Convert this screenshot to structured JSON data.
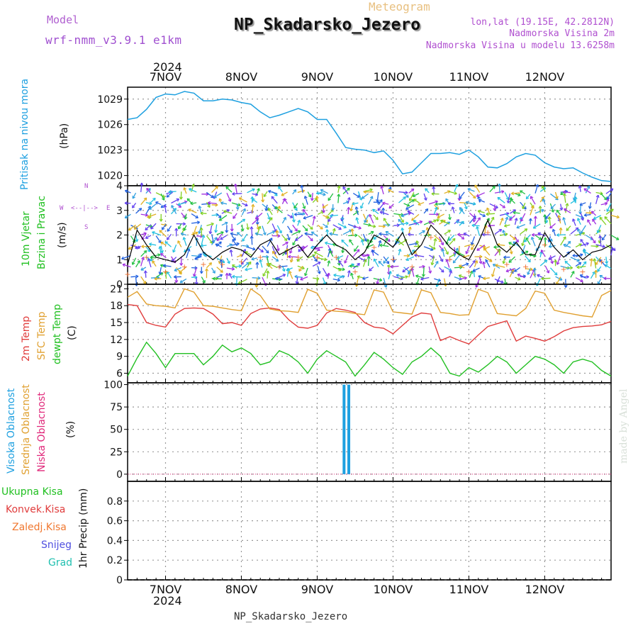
{
  "header": {
    "model_label": "Model",
    "model_name": "wrf-nmm_v3.9.1 e1km",
    "meteogram_label": "Meteogram",
    "station_title": "NP_Skadarsko_Jezero",
    "coords": "lon,lat (19.15E, 42.2812N)",
    "elevation": "Nadmorska Visina 2m",
    "model_elevation": "Nadmorska Visina u modelu 13.6258m",
    "footer_station": "NP_Skadarsko_Jezero",
    "credit": "made by Angel"
  },
  "axis_time": {
    "year": "2024",
    "days": [
      "7NOV",
      "8NOV",
      "9NOV",
      "10NOV",
      "11NOV",
      "12NOV"
    ]
  },
  "colors": {
    "pressure": "#1ea0e0",
    "wind_speed": "#000000",
    "temp2m": "#e03c3c",
    "sfc_temp": "#e0a030",
    "dewpoint": "#22c022",
    "cloud_high": "#1ea0e0",
    "cloud_mid": "#e0a030",
    "cloud_low": "#e0287a",
    "grid": "#999999"
  },
  "panel_labels": {
    "pressure": {
      "name": "Pritisak na nivou mora",
      "unit": "(hPa)"
    },
    "wind": {
      "line1": "10m Vjetar",
      "line2": "Brzina i Pravac",
      "unit": "(m/s)",
      "compass_n": "N",
      "compass_w": "W",
      "compass_e": "E",
      "compass_s": "S"
    },
    "temp": {
      "t2m": "2m Temp",
      "sfc": "SFC Temp",
      "dew": "dewpt Temp",
      "unit": "(C)"
    },
    "cloud": {
      "high": "Visoka Oblacnost",
      "mid": "Srednja Oblacnost",
      "low": "Niska Oblacnost",
      "unit": "(%)"
    },
    "precip": {
      "total": "Ukupna Kisa",
      "conv": "Konvek.Kisa",
      "frozen": "Zaledj.Kisa",
      "snow": "Snijeg",
      "grad": "Grad",
      "axis": "1hr Precip (mm)"
    }
  },
  "chart_data": [
    {
      "type": "line",
      "name": "pressure",
      "ylim": [
        1018.8,
        1030.4
      ],
      "yticks": [
        "1029",
        "1026",
        "1023",
        "1020"
      ],
      "yticks_values": [
        1029,
        1026,
        1023,
        1020
      ],
      "x_hours": [
        0,
        3,
        6,
        9,
        12,
        15,
        18,
        21,
        24,
        27,
        30,
        33,
        36,
        39,
        42,
        45,
        48,
        51,
        54,
        57,
        60,
        63,
        66,
        69,
        72,
        75,
        78,
        81,
        84,
        87,
        90,
        93,
        96,
        99,
        102,
        105,
        108,
        111,
        114,
        117,
        120,
        123,
        126,
        129,
        132,
        135,
        138,
        141,
        144,
        147,
        150,
        153
      ],
      "values": [
        1026.6,
        1026.8,
        1027.8,
        1029.2,
        1029.6,
        1029.5,
        1029.9,
        1029.7,
        1028.8,
        1028.8,
        1029.0,
        1028.9,
        1028.6,
        1028.4,
        1027.5,
        1026.8,
        1027.1,
        1027.5,
        1027.9,
        1027.5,
        1026.6,
        1026.6,
        1025.0,
        1023.3,
        1023.1,
        1023.0,
        1022.7,
        1022.9,
        1021.8,
        1020.2,
        1020.4,
        1021.5,
        1022.6,
        1022.6,
        1022.7,
        1022.5,
        1023.0,
        1022.2,
        1021.0,
        1020.9,
        1021.4,
        1022.2,
        1022.6,
        1022.4,
        1021.5,
        1021.0,
        1020.8,
        1020.9,
        1020.3,
        1019.8,
        1019.4,
        1019.3
      ]
    },
    {
      "type": "line",
      "name": "wind_speed",
      "ylim": [
        0,
        4
      ],
      "yticks": [
        "4",
        "3",
        "2",
        "1",
        "0"
      ],
      "yticks_values": [
        4,
        3,
        2,
        1,
        0
      ],
      "x_hours": [
        0,
        3,
        6,
        9,
        12,
        15,
        18,
        21,
        24,
        27,
        30,
        33,
        36,
        39,
        42,
        45,
        48,
        51,
        54,
        57,
        60,
        63,
        66,
        69,
        72,
        75,
        78,
        81,
        84,
        87,
        90,
        93,
        96,
        99,
        102,
        105,
        108,
        111,
        114,
        117,
        120,
        123,
        126,
        129,
        132,
        135,
        138,
        141,
        144,
        147,
        150,
        153
      ],
      "values": [
        0.8,
        2.2,
        1.6,
        1.1,
        1.0,
        0.9,
        1.2,
        2.0,
        1.3,
        1.0,
        1.3,
        1.5,
        1.4,
        1.1,
        1.6,
        1.8,
        1.2,
        1.4,
        1.6,
        1.1,
        1.6,
        2.0,
        1.6,
        1.4,
        1.0,
        1.3,
        2.0,
        1.8,
        1.5,
        2.1,
        1.2,
        1.6,
        2.4,
        2.0,
        1.5,
        1.2,
        1.0,
        1.7,
        2.6,
        1.6,
        1.3,
        1.7,
        1.2,
        1.2,
        2.1,
        1.5,
        1.1,
        1.4,
        1.0,
        1.3,
        1.4,
        1.6
      ]
    },
    {
      "type": "line",
      "name": "temperature",
      "ylim": [
        4.3,
        21.8
      ],
      "yticks": [
        "21",
        "18",
        "15",
        "12",
        "9",
        "6"
      ],
      "yticks_values": [
        21,
        18,
        15,
        12,
        9,
        6
      ],
      "x_hours": [
        0,
        3,
        6,
        9,
        12,
        15,
        18,
        21,
        24,
        27,
        30,
        33,
        36,
        39,
        42,
        45,
        48,
        51,
        54,
        57,
        60,
        63,
        66,
        69,
        72,
        75,
        78,
        81,
        84,
        87,
        90,
        93,
        96,
        99,
        102,
        105,
        108,
        111,
        114,
        117,
        120,
        123,
        126,
        129,
        132,
        135,
        138,
        141,
        144,
        147,
        150,
        153
      ],
      "series": [
        {
          "name": "2m Temp",
          "values": [
            18.2,
            18.0,
            15.0,
            14.5,
            14.2,
            16.5,
            17.5,
            17.6,
            17.5,
            16.5,
            14.8,
            15.0,
            14.5,
            16.6,
            17.4,
            17.6,
            17.3,
            15.5,
            14.2,
            14.0,
            14.5,
            16.7,
            17.5,
            17.2,
            16.8,
            15.0,
            14.2,
            14.0,
            13.0,
            14.5,
            16.0,
            16.7,
            16.5,
            11.8,
            12.5,
            11.8,
            11.2,
            12.8,
            14.3,
            14.8,
            15.3,
            11.7,
            12.6,
            12.2,
            11.7,
            12.5,
            13.5,
            14.1,
            14.3,
            14.4,
            14.6,
            15.2
          ]
        },
        {
          "name": "SFC Temp",
          "values": [
            19.5,
            20.5,
            18.3,
            18.0,
            17.9,
            17.6,
            21.0,
            20.4,
            18.0,
            17.9,
            17.6,
            17.3,
            17.1,
            21.0,
            19.8,
            17.4,
            17.1,
            17.0,
            16.8,
            20.9,
            20.2,
            17.2,
            17.0,
            16.9,
            16.6,
            16.4,
            20.8,
            20.4,
            16.9,
            16.7,
            16.5,
            20.8,
            20.3,
            16.8,
            16.6,
            16.3,
            16.4,
            20.9,
            20.3,
            16.6,
            16.4,
            16.2,
            17.5,
            20.6,
            20.2,
            17.2,
            16.8,
            16.5,
            16.2,
            16.0,
            19.8,
            20.7
          ]
        },
        {
          "name": "dewpt Temp",
          "values": [
            5.5,
            8.7,
            11.5,
            9.5,
            7.0,
            9.5,
            9.5,
            9.5,
            7.5,
            9.0,
            11.0,
            9.8,
            10.5,
            9.5,
            7.5,
            8.0,
            10.0,
            9.3,
            8.0,
            6.0,
            8.5,
            10.0,
            9.0,
            8.0,
            5.5,
            7.5,
            9.7,
            8.5,
            7.0,
            5.8,
            8.0,
            9.0,
            10.5,
            9.0,
            6.0,
            5.5,
            7.0,
            6.2,
            7.5,
            9.0,
            8.0,
            6.0,
            7.5,
            9.0,
            8.5,
            7.5,
            6.0,
            8.0,
            8.5,
            8.0,
            6.5,
            5.5
          ]
        }
      ]
    },
    {
      "type": "bar",
      "name": "cloud",
      "ylim": [
        -8,
        102
      ],
      "yticks": [
        "100",
        "75",
        "50",
        "25",
        "0"
      ],
      "yticks_values": [
        100,
        75,
        50,
        25,
        0
      ],
      "series": [
        {
          "name": "Visoka Oblacnost",
          "x_hours": [
            68.5,
            70
          ],
          "values": [
            100,
            100
          ]
        },
        {
          "name": "Srednja Oblacnost",
          "values": [
            0
          ]
        },
        {
          "name": "Niska Oblacnost",
          "values": [
            0
          ]
        }
      ]
    },
    {
      "type": "line",
      "name": "precip",
      "ylim": [
        0,
        1.0
      ],
      "yticks": [
        "0.8",
        "0.6",
        "0.4",
        "0.2",
        "0"
      ],
      "yticks_values": [
        0.8,
        0.6,
        0.4,
        0.2,
        0
      ],
      "series": [
        {
          "name": "Ukupna Kisa",
          "values": [
            0
          ]
        }
      ]
    }
  ]
}
